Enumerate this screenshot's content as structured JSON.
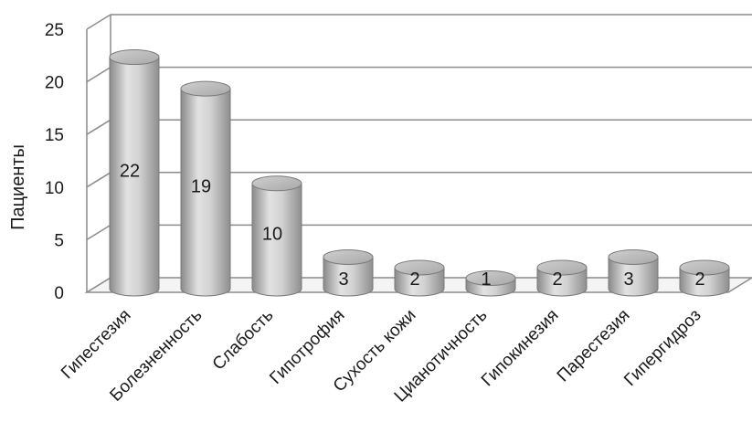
{
  "chart_data": {
    "type": "bar",
    "style": "3d-cylinder",
    "categories": [
      "Гипестезия",
      "Болезненность",
      "Слабость",
      "Гипотрофия",
      "Сухость кожи",
      "Цианотичность",
      "Гипокинезия",
      "Парестезия",
      "Гипергидроз"
    ],
    "values": [
      22,
      19,
      10,
      3,
      2,
      1,
      2,
      3,
      2
    ],
    "data_labels": [
      "22",
      "19",
      "10",
      "3",
      "2",
      "1",
      "2",
      "3",
      "2"
    ],
    "ylabel": "Пациенты",
    "ylim": [
      0,
      25
    ],
    "yticks": [
      "0",
      "5",
      "10",
      "15",
      "20",
      "25"
    ],
    "grid": true,
    "legend": "none",
    "colors": {
      "bar": "#bdbdbd",
      "grid": "#8c8c8c",
      "text": "#1a1a1a"
    }
  }
}
